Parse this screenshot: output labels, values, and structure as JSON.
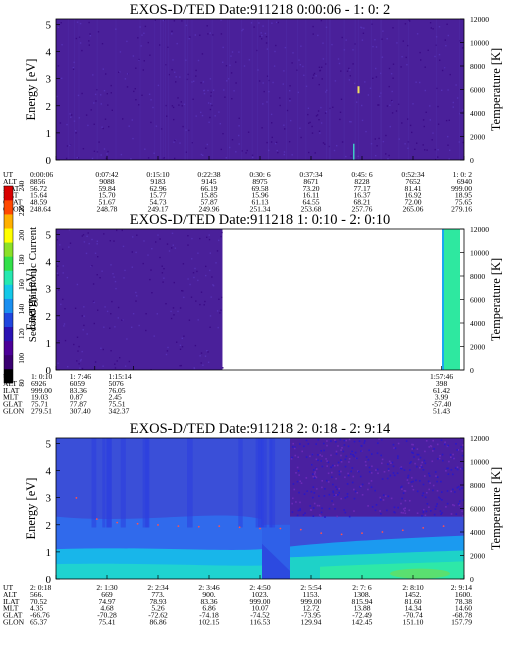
{
  "chart_data": {
    "type": "heatmap",
    "colorbar": {
      "label": "Second Harmonic Current",
      "ticks": [
        "80",
        "100",
        "120",
        "140",
        "160",
        "180",
        "200",
        "220",
        "240"
      ],
      "colors": [
        "#000000",
        "#3a0071",
        "#4c0098",
        "#2a12b3",
        "#2046de",
        "#1a8ff0",
        "#14c8e8",
        "#26e8b0",
        "#33e04a",
        "#8ce028",
        "#ffff00",
        "#ffb000",
        "#ff4800",
        "#d80000"
      ]
    },
    "panels": [
      {
        "title": "EXOS-D/TED   Date:911218  0:00:06 - 1: 0: 2",
        "ylabel_left": "Energy [eV]",
        "ylabel_right": "Temperature [K]",
        "y_ticks_left": [
          "0",
          "1",
          "2",
          "3",
          "4",
          "5"
        ],
        "y_ticks_right": [
          "0",
          "2000",
          "4000",
          "6000",
          "8000",
          "10000",
          "12000"
        ],
        "ylim_left": [
          0,
          5.2
        ],
        "ylim_right": [
          0,
          12000
        ],
        "data_extent": [
          0,
          1
        ],
        "row_labels": [
          "UT",
          "ALT",
          "ILAT",
          "MLT",
          "GLAT",
          "GLON"
        ],
        "columns": [
          [
            "0:00:06",
            "8856",
            "56.72",
            "15.64",
            "48.59",
            "248.64"
          ],
          [
            "0:07:42",
            "9088",
            "59.84",
            "15.70",
            "51.67",
            "248.78"
          ],
          [
            "0:15:10",
            "9183",
            "62.96",
            "15.77",
            "54.73",
            "249.17"
          ],
          [
            "0:22:38",
            "9145",
            "66.19",
            "15.85",
            "57.87",
            "249.96"
          ],
          [
            "0:30: 6",
            "8975",
            "69.58",
            "15.96",
            "61.13",
            "251.34"
          ],
          [
            "0:37:34",
            "8671",
            "73.20",
            "16.11",
            "64.55",
            "253.68"
          ],
          [
            "0:45: 6",
            "8228",
            "77.17",
            "16.37",
            "68.21",
            "257.76"
          ],
          [
            "0:52:34",
            "7652",
            "81.41",
            "16.92",
            "72.00",
            "265.06"
          ],
          [
            "1: 0: 2",
            "6940",
            "999.00",
            "18.95",
            "75.65",
            "279.16"
          ]
        ]
      },
      {
        "title": "EXOS-D/TED   Date:911218  1: 0:10 - 2: 0:10",
        "ylabel_left": "Energy [eV]",
        "ylabel_right": "Temperature [K]",
        "y_ticks_left": [
          "0",
          "1",
          "2",
          "3",
          "4",
          "5"
        ],
        "y_ticks_right": [
          "0",
          "2000",
          "4000",
          "6000",
          "8000",
          "10000",
          "12000"
        ],
        "ylim_left": [
          0,
          5.2
        ],
        "ylim_right": [
          0,
          12000
        ],
        "data_extent": [
          0,
          0.408
        ],
        "row_labels": [
          "UT",
          "ALT",
          "ILAT",
          "MLT",
          "GLAT",
          "GLON"
        ],
        "columns": [
          [
            "1: 0:10",
            "6926",
            "999.00",
            "19.03",
            "75.71",
            "279.51"
          ],
          [
            "1: 7:46",
            "6059",
            "83.36",
            "0.87",
            "77.87",
            "307.40"
          ],
          [
            "1:15:14",
            "5076",
            "76.05",
            "2.45",
            "75.51",
            "342.37"
          ],
          [
            "1:57:46",
            "398",
            "61.42",
            "3.99",
            "-57.40",
            "51.43"
          ]
        ]
      },
      {
        "title": "EXOS-D/TED   Date:911218  2: 0:18 - 2: 9:14",
        "ylabel_left": "Energy [eV]",
        "ylabel_right": "Temperature [K]",
        "y_ticks_left": [
          "0",
          "1",
          "2",
          "3",
          "4",
          "5"
        ],
        "y_ticks_right": [
          "0",
          "2000",
          "4000",
          "6000",
          "8000",
          "10000",
          "12000"
        ],
        "ylim_left": [
          0,
          5.2
        ],
        "ylim_right": [
          0,
          12000
        ],
        "data_extent": [
          0,
          1
        ],
        "row_labels": [
          "UT",
          "ALT",
          "ILAT",
          "MLT",
          "GLAT",
          "GLON"
        ],
        "columns": [
          [
            "2: 0:18",
            "566.",
            "70.52",
            "4.35",
            "-66.76",
            "65.37"
          ],
          [
            "2: 1:30",
            "669",
            "74.97",
            "4.68",
            "-70.28",
            "75.41"
          ],
          [
            "2: 2:34",
            "773.",
            "78.93",
            "5.26",
            "-72.62",
            "86.86"
          ],
          [
            "2: 3:46",
            "900.",
            "83.36",
            "6.86",
            "-74.18",
            "102.15"
          ],
          [
            "2: 4:50",
            "1023.",
            "999.00",
            "10.07",
            "-74.52",
            "116.53"
          ],
          [
            "2: 5:54",
            "1153.",
            "999.00",
            "12.72",
            "-73.95",
            "129.94"
          ],
          [
            "2: 7: 6",
            "1308.",
            "815.94",
            "13.88",
            "-72.49",
            "142.45"
          ],
          [
            "2: 8:10",
            "1452.",
            "81.60",
            "14.34",
            "-70.74",
            "151.10"
          ],
          [
            "2: 9:14",
            "1600.",
            "78.38",
            "14.60",
            "-68.78",
            "157.79"
          ]
        ],
        "temperature_series_K": [
          [
            0.05,
            6900
          ],
          [
            0.1,
            5100
          ],
          [
            0.15,
            4800
          ],
          [
            0.2,
            4700
          ],
          [
            0.25,
            4600
          ],
          [
            0.3,
            4500
          ],
          [
            0.35,
            4450
          ],
          [
            0.4,
            4500
          ],
          [
            0.45,
            4400
          ],
          [
            0.5,
            4300
          ],
          [
            0.55,
            4300
          ],
          [
            0.6,
            4200
          ],
          [
            0.65,
            3900
          ],
          [
            0.7,
            3800
          ],
          [
            0.75,
            3900
          ],
          [
            0.8,
            4000
          ],
          [
            0.85,
            4150
          ],
          [
            0.9,
            4350
          ],
          [
            0.95,
            4500
          ]
        ]
      }
    ]
  }
}
